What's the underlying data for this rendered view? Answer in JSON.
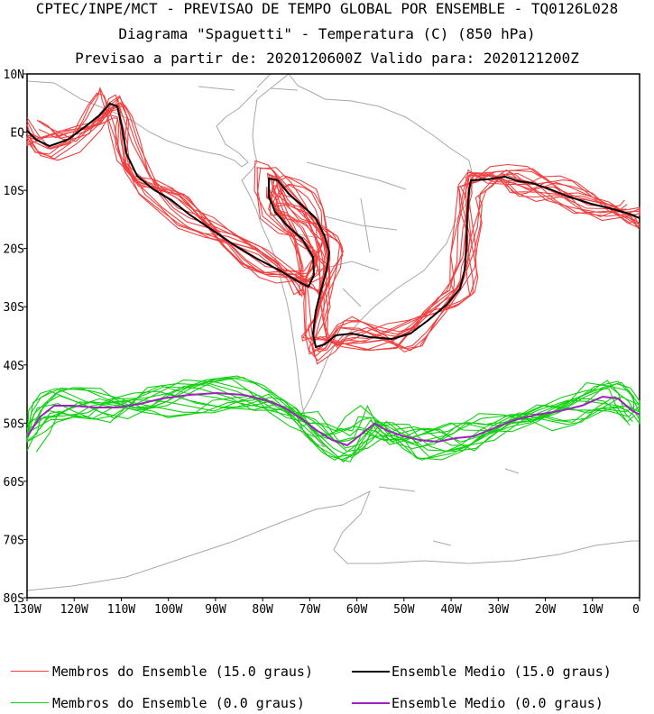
{
  "header": {
    "line1": "CPTEC/INPE/MCT - PREVISAO DE TEMPO GLOBAL POR ENSEMBLE - TQ0126L028",
    "line2": "Diagrama \"Spaguetti\" - Temperatura (C) (850 hPa)",
    "line3": "Previsao a partir de: 2020120600Z  Valido para: 2020121200Z"
  },
  "map": {
    "lon_range": [
      -130,
      0
    ],
    "lat_range": [
      -80,
      10
    ],
    "lat_labels": [
      "10N",
      "EQ",
      "10S",
      "20S",
      "30S",
      "40S",
      "50S",
      "60S",
      "70S",
      "80S"
    ],
    "lon_labels": [
      "130W",
      "120W",
      "110W",
      "100W",
      "90W",
      "80W",
      "70W",
      "60W",
      "50W",
      "40W",
      "30W",
      "20W",
      "10W",
      "0"
    ],
    "colors": {
      "warm_members": "#f04040",
      "warm_mean": "#000000",
      "cold_members": "#10d010",
      "cold_mean": "#a020c0",
      "coast": "#a8a8a8"
    }
  },
  "legend": {
    "warm_members": "Membros do Ensemble (15.0 graus)",
    "warm_mean": "Ensemble Medio (15.0 graus)",
    "cold_members": "Membros do Ensemble (0.0 graus)",
    "cold_mean": "Ensemble Medio (0.0 graus)"
  }
}
